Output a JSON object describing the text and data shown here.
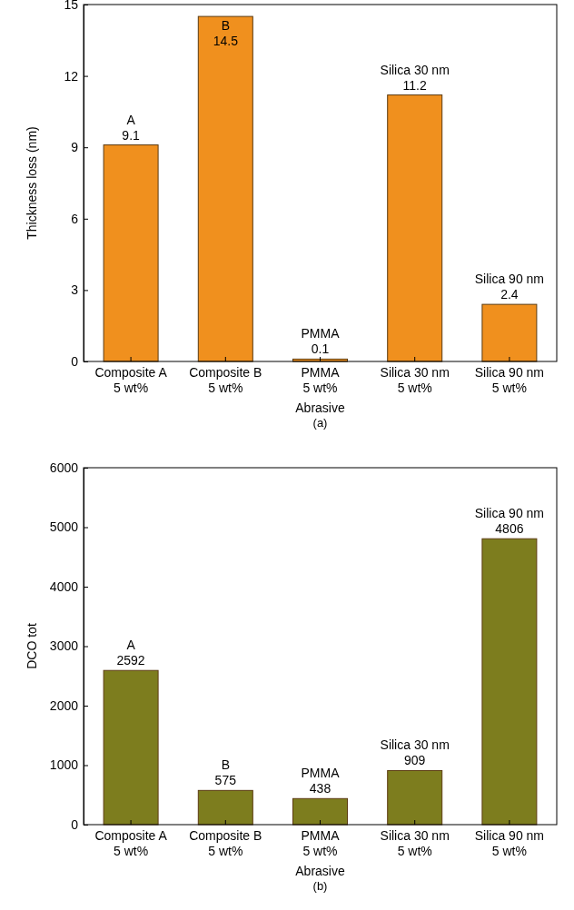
{
  "chart_data": [
    {
      "type": "bar",
      "categories": [
        "Composite A\n5 wt%",
        "Composite B\n5 wt%",
        "PMMA\n5 wt%",
        "Silica 30 nm\n5 wt%",
        "Silica 90 nm\n5 wt%"
      ],
      "values": [
        9.1,
        14.5,
        0.1,
        11.2,
        2.4
      ],
      "color": "#f0901e",
      "ylim": [
        0,
        15
      ],
      "yticks": [
        0,
        3,
        6,
        9,
        12,
        15
      ],
      "xlabel": "Abrasive",
      "ylabel": "Thickness loss (nm)",
      "data_labels": true,
      "annotations": [
        {
          "text": "A",
          "x": "Composite A\n5 wt%",
          "y": 9.1
        },
        {
          "text": "B",
          "x": "Composite B\n5 wt%",
          "y": 14.5
        },
        {
          "text": "PMMA",
          "x": "PMMA\n5 wt%",
          "y": 0.1
        },
        {
          "text": "Silica 30 nm",
          "x": "Silica 30 nm\n5 wt%",
          "y": 11.2
        },
        {
          "text": "Silica 90 nm",
          "x": "Silica 90 nm\n5 wt%",
          "y": 2.4
        },
        "(a)"
      ]
    },
    {
      "type": "bar",
      "categories": [
        "Composite A\n5 wt%",
        "Composite B\n5 wt%",
        "PMMA\n5 wt%",
        "Silica 30 nm\n5 wt%",
        "Silica 90 nm\n5 wt%"
      ],
      "values": [
        2592,
        575,
        438,
        909,
        4806
      ],
      "color": "#7d7d1e",
      "ylim": [
        0,
        6000
      ],
      "yticks": [
        0,
        1000,
        2000,
        3000,
        4000,
        5000,
        6000
      ],
      "xlabel": "Abrasive",
      "ylabel": "DCO tot",
      "data_labels": true,
      "annotations": [
        {
          "text": "A",
          "x": "Composite A\n5 wt%",
          "y": 2592
        },
        {
          "text": "B",
          "x": "Composite B\n5 wt%",
          "y": 575
        },
        {
          "text": "PMMA",
          "x": "PMMA\n5 wt%",
          "y": 438
        },
        {
          "text": "Silica 30 nm",
          "x": "Silica 30 nm\n5 wt%",
          "y": 909
        },
        {
          "text": "Silica 90 nm",
          "x": "Silica 90 nm\n5 wt%",
          "y": 4806
        },
        "(b)"
      ]
    }
  ]
}
